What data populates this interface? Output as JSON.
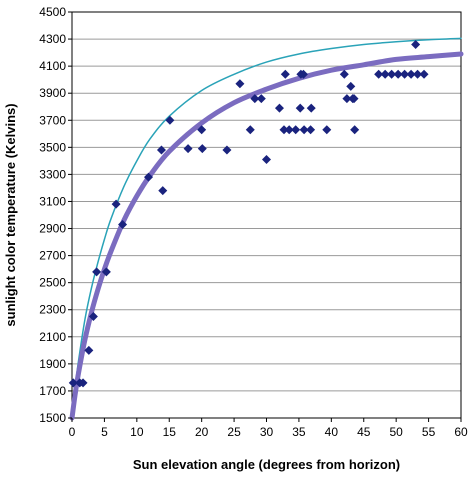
{
  "chart_data": {
    "type": "scatter",
    "title": "",
    "xlabel": "Sun elevation angle (degrees from horizon)",
    "ylabel": "sunlight color temperature (Kelvins)",
    "xlim": [
      0,
      60
    ],
    "ylim": [
      1500,
      4500
    ],
    "x_ticks": [
      0,
      5,
      10,
      15,
      20,
      25,
      30,
      35,
      40,
      45,
      50,
      55,
      60
    ],
    "y_ticks": [
      1500,
      1700,
      1900,
      2100,
      2300,
      2500,
      2700,
      2900,
      3100,
      3300,
      3500,
      3700,
      3900,
      4100,
      4300,
      4500
    ],
    "grid": "horizontal",
    "legend": "none",
    "series": [
      {
        "kind": "points",
        "color": "#1a237e",
        "marker": "diamond",
        "points": [
          [
            0.2,
            1760
          ],
          [
            1.2,
            1760
          ],
          [
            1.7,
            1760
          ],
          [
            2.6,
            2000
          ],
          [
            3.3,
            2250
          ],
          [
            3.8,
            2580
          ],
          [
            5.3,
            2580
          ],
          [
            6.8,
            3080
          ],
          [
            7.8,
            2930
          ],
          [
            11.8,
            3280
          ],
          [
            13.8,
            3480
          ],
          [
            14.0,
            3180
          ],
          [
            15.1,
            3700
          ],
          [
            17.9,
            3490
          ],
          [
            20.0,
            3630
          ],
          [
            20.1,
            3490
          ],
          [
            23.9,
            3480
          ],
          [
            25.9,
            3970
          ],
          [
            27.5,
            3630
          ],
          [
            28.2,
            3860
          ],
          [
            29.2,
            3860
          ],
          [
            30.0,
            3410
          ],
          [
            32.0,
            3790
          ],
          [
            32.7,
            3630
          ],
          [
            32.9,
            4040
          ],
          [
            33.5,
            3630
          ],
          [
            34.5,
            3630
          ],
          [
            35.2,
            3790
          ],
          [
            35.3,
            4040
          ],
          [
            35.7,
            4040
          ],
          [
            35.8,
            3630
          ],
          [
            36.8,
            3630
          ],
          [
            36.9,
            3790
          ],
          [
            39.3,
            3630
          ],
          [
            42.0,
            4040
          ],
          [
            42.4,
            3860
          ],
          [
            43.0,
            3950
          ],
          [
            43.3,
            3860
          ],
          [
            43.5,
            3860
          ],
          [
            43.6,
            3630
          ],
          [
            47.3,
            4040
          ],
          [
            48.3,
            4040
          ],
          [
            49.3,
            4040
          ],
          [
            50.3,
            4040
          ],
          [
            51.3,
            4040
          ],
          [
            52.3,
            4040
          ],
          [
            53.0,
            4260
          ],
          [
            53.3,
            4040
          ],
          [
            54.3,
            4040
          ]
        ]
      },
      {
        "kind": "curve",
        "color": "#2aa3b8",
        "width": 1.5,
        "points": [
          [
            0,
            1500
          ],
          [
            0.5,
            1730
          ],
          [
            1,
            1920
          ],
          [
            2,
            2230
          ],
          [
            3,
            2460
          ],
          [
            4,
            2650
          ],
          [
            5,
            2820
          ],
          [
            6,
            2970
          ],
          [
            8,
            3210
          ],
          [
            10,
            3400
          ],
          [
            12,
            3560
          ],
          [
            15,
            3730
          ],
          [
            20,
            3920
          ],
          [
            25,
            4040
          ],
          [
            30,
            4130
          ],
          [
            35,
            4190
          ],
          [
            40,
            4230
          ],
          [
            45,
            4260
          ],
          [
            50,
            4280
          ],
          [
            55,
            4295
          ],
          [
            60,
            4305
          ]
        ]
      },
      {
        "kind": "curve",
        "color": "#7b6cc0",
        "width": 5,
        "points": [
          [
            0,
            1500
          ],
          [
            0.5,
            1680
          ],
          [
            1,
            1830
          ],
          [
            2,
            2080
          ],
          [
            3,
            2280
          ],
          [
            4,
            2450
          ],
          [
            5,
            2600
          ],
          [
            6,
            2730
          ],
          [
            8,
            2960
          ],
          [
            10,
            3140
          ],
          [
            12,
            3290
          ],
          [
            15,
            3470
          ],
          [
            20,
            3680
          ],
          [
            25,
            3830
          ],
          [
            30,
            3930
          ],
          [
            35,
            4010
          ],
          [
            40,
            4070
          ],
          [
            45,
            4110
          ],
          [
            50,
            4150
          ],
          [
            55,
            4170
          ],
          [
            60,
            4190
          ]
        ]
      }
    ]
  }
}
